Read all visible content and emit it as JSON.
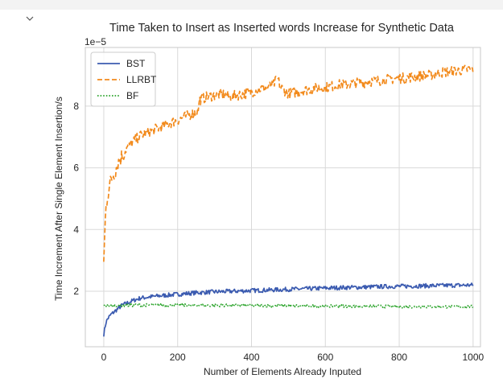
{
  "colors": {
    "bst": "#3b5bb0",
    "llrbt": "#f28a1c",
    "bf": "#2ca42c",
    "grid": "#d9d9d9",
    "frame": "#c8c8c8",
    "text": "#262626"
  },
  "toolbar": {
    "collapse_icon": "chevron-down-icon"
  },
  "chart_data": {
    "type": "line",
    "title": "Time Taken to Insert as Inserted words Increase for Synthetic Data",
    "xlabel": "Number of Elements Already Inputed",
    "ylabel": "Time Increment After Single Element Insertion/s",
    "y_scale_label": "1e−5",
    "xlim": [
      -50,
      1020
    ],
    "ylim": [
      0.2,
      9.9
    ],
    "xticks": [
      0,
      200,
      400,
      600,
      800,
      1000
    ],
    "xtick_labels": [
      "0",
      "200",
      "400",
      "600",
      "800",
      "1000"
    ],
    "yticks": [
      2,
      4,
      6,
      8
    ],
    "ytick_labels": [
      "2",
      "4",
      "6",
      "8"
    ],
    "grid": true,
    "legend_placement": "top-left",
    "series": [
      {
        "name": "BST",
        "style": "solid",
        "x": [
          0,
          5,
          10,
          20,
          30,
          40,
          50,
          60,
          80,
          100,
          150,
          200,
          250,
          300,
          350,
          400,
          450,
          500,
          550,
          600,
          650,
          700,
          750,
          800,
          850,
          900,
          950,
          1000
        ],
        "y": [
          0.6,
          0.95,
          1.1,
          1.25,
          1.35,
          1.45,
          1.55,
          1.6,
          1.7,
          1.78,
          1.85,
          1.9,
          1.95,
          1.98,
          2.0,
          2.02,
          2.04,
          2.06,
          2.08,
          2.1,
          2.12,
          2.13,
          2.15,
          2.16,
          2.17,
          2.18,
          2.19,
          2.2
        ]
      },
      {
        "name": "LLRBT",
        "style": "dashed",
        "x": [
          0,
          3,
          6,
          10,
          15,
          20,
          30,
          40,
          50,
          60,
          70,
          80,
          90,
          100,
          120,
          140,
          160,
          180,
          200,
          220,
          240,
          255,
          260,
          280,
          300,
          320,
          340,
          360,
          380,
          400,
          420,
          440,
          460,
          470,
          480,
          500,
          520,
          540,
          560,
          580,
          600,
          620,
          640,
          660,
          680,
          700,
          720,
          740,
          760,
          780,
          800,
          820,
          840,
          860,
          880,
          900,
          920,
          940,
          960,
          980,
          1000
        ],
        "y": [
          2.9,
          4.0,
          4.7,
          5.1,
          5.4,
          5.6,
          5.9,
          6.2,
          6.4,
          6.6,
          6.75,
          6.85,
          6.95,
          7.05,
          7.15,
          7.25,
          7.35,
          7.45,
          7.55,
          7.65,
          7.75,
          7.85,
          8.2,
          8.3,
          8.35,
          8.4,
          8.3,
          8.35,
          8.4,
          8.45,
          8.55,
          8.6,
          8.7,
          8.9,
          8.6,
          8.4,
          8.45,
          8.5,
          8.55,
          8.6,
          8.6,
          8.65,
          8.7,
          8.7,
          8.75,
          8.75,
          8.8,
          8.82,
          8.85,
          8.88,
          8.9,
          8.92,
          8.95,
          8.98,
          9.0,
          9.05,
          9.1,
          9.12,
          9.15,
          9.18,
          9.2
        ]
      },
      {
        "name": "BF",
        "style": "dotted",
        "x": [
          0,
          50,
          100,
          150,
          200,
          250,
          300,
          350,
          400,
          450,
          500,
          550,
          600,
          650,
          700,
          750,
          800,
          850,
          900,
          950,
          1000
        ],
        "y": [
          1.52,
          1.54,
          1.55,
          1.55,
          1.55,
          1.54,
          1.54,
          1.54,
          1.54,
          1.53,
          1.53,
          1.52,
          1.52,
          1.52,
          1.51,
          1.51,
          1.5,
          1.5,
          1.5,
          1.5,
          1.5
        ]
      }
    ]
  }
}
